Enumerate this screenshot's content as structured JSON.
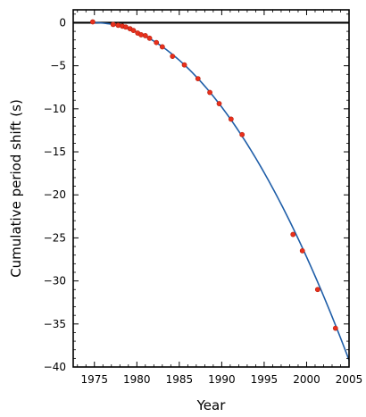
{
  "chart_data": {
    "type": "scatter",
    "title": "",
    "xlabel": "Year",
    "ylabel": "Cumulative period shift (s)",
    "xlim": [
      1972.5,
      2005
    ],
    "ylim": [
      -40,
      1.5
    ],
    "grid": false,
    "legend": "none",
    "x_ticks": [
      1975,
      1980,
      1985,
      1990,
      1995,
      2000,
      2005
    ],
    "y_ticks": [
      0,
      -5,
      -10,
      -15,
      -20,
      -25,
      -30,
      -35,
      -40
    ],
    "zero_line": 0,
    "series": [
      {
        "kind": "points",
        "color": "#e8301c",
        "points": [
          {
            "x": 1974.8,
            "y": 0.1
          },
          {
            "x": 1977.2,
            "y": -0.2
          },
          {
            "x": 1977.8,
            "y": -0.3
          },
          {
            "x": 1978.3,
            "y": -0.4
          },
          {
            "x": 1978.7,
            "y": -0.5
          },
          {
            "x": 1979.2,
            "y": -0.7
          },
          {
            "x": 1979.6,
            "y": -0.9
          },
          {
            "x": 1980.1,
            "y": -1.2
          },
          {
            "x": 1980.5,
            "y": -1.4
          },
          {
            "x": 1981.0,
            "y": -1.5
          },
          {
            "x": 1981.5,
            "y": -1.8
          },
          {
            "x": 1982.3,
            "y": -2.3
          },
          {
            "x": 1983.0,
            "y": -2.8
          },
          {
            "x": 1984.2,
            "y": -3.9
          },
          {
            "x": 1985.6,
            "y": -4.9
          },
          {
            "x": 1987.2,
            "y": -6.5
          },
          {
            "x": 1988.6,
            "y": -8.1
          },
          {
            "x": 1989.7,
            "y": -9.4
          },
          {
            "x": 1991.1,
            "y": -11.2
          },
          {
            "x": 1992.4,
            "y": -13.0
          },
          {
            "x": 1998.4,
            "y": -24.6
          },
          {
            "x": 1999.5,
            "y": -26.5
          },
          {
            "x": 2001.3,
            "y": -31.0
          },
          {
            "x": 2003.4,
            "y": -35.5
          }
        ]
      },
      {
        "kind": "curve",
        "color": "#1f5ea8",
        "x0": 1975.0,
        "x1": 2005.0,
        "y_at_x1": -39.2,
        "shape": "quadratic through origin at x0"
      }
    ]
  }
}
